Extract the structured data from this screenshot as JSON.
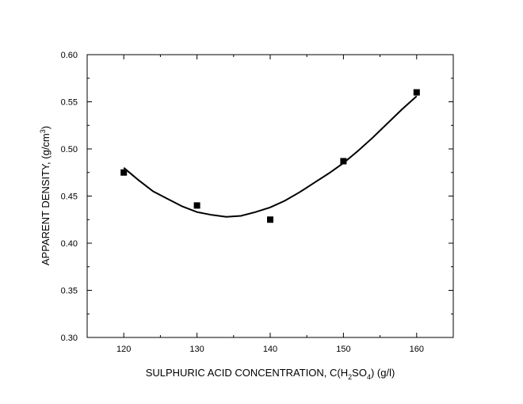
{
  "chart_data": {
    "type": "scatter",
    "xlabel": {
      "pre": "SULPHURIC ACID CONCENTRATION, C(H",
      "sub1": "2",
      "mid": "SO",
      "sub2": "4",
      "post": ") (g/l)"
    },
    "ylabel": {
      "pre": "APPARENT DENSITY, (g/cm",
      "sup": "3",
      "post": ")"
    },
    "xlim": [
      115,
      165
    ],
    "ylim": [
      0.3,
      0.6
    ],
    "x_ticks": [
      120,
      130,
      140,
      150,
      160
    ],
    "y_ticks": [
      0.3,
      0.35,
      0.4,
      0.45,
      0.5,
      0.55,
      0.6
    ],
    "x_tick_labels": [
      "120",
      "130",
      "140",
      "150",
      "160"
    ],
    "y_tick_labels": [
      "0.30",
      "0.35",
      "0.40",
      "0.45",
      "0.50",
      "0.55",
      "0.60"
    ],
    "grid": false,
    "series": [
      {
        "marker": "square",
        "x": [
          120,
          130,
          140,
          150,
          160
        ],
        "y": [
          0.475,
          0.44,
          0.425,
          0.487,
          0.56
        ]
      }
    ],
    "fit_curve": {
      "type": "polynomial",
      "x": [
        120,
        122,
        124,
        126,
        128,
        130,
        132,
        134,
        136,
        138,
        140,
        142,
        144,
        146,
        148,
        150,
        152,
        154,
        156,
        158,
        160
      ],
      "y": [
        0.48,
        0.467,
        0.455,
        0.447,
        0.439,
        0.433,
        0.43,
        0.428,
        0.429,
        0.433,
        0.438,
        0.445,
        0.454,
        0.464,
        0.474,
        0.485,
        0.498,
        0.512,
        0.527,
        0.542,
        0.556
      ]
    },
    "colors": {
      "line": "#000000",
      "marker": "#000000"
    }
  }
}
